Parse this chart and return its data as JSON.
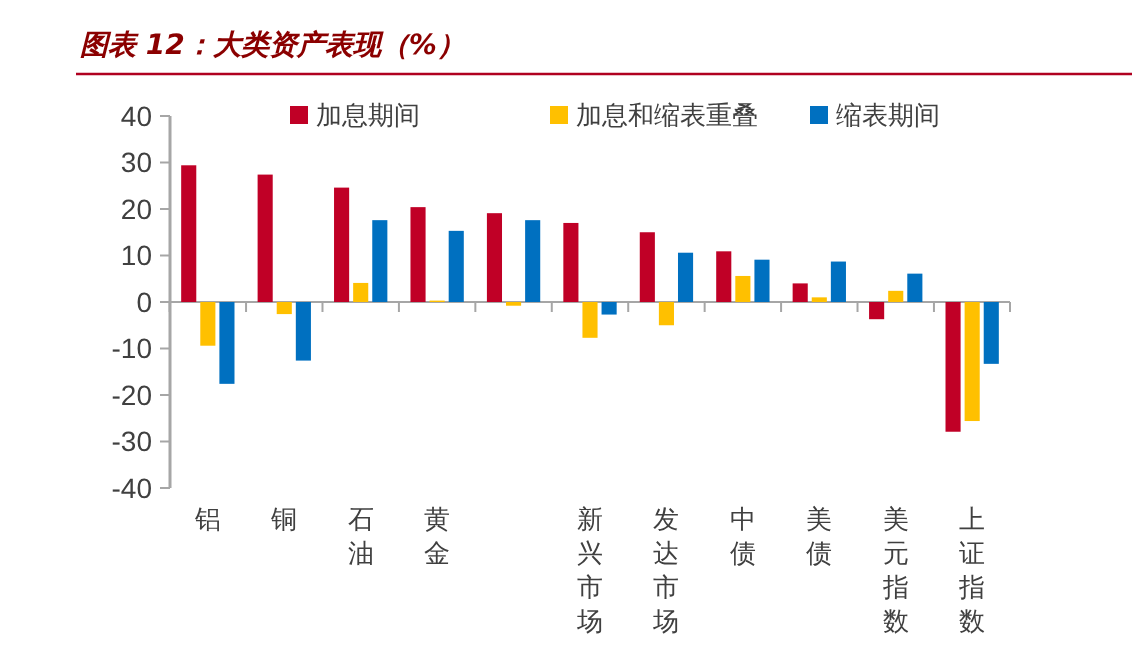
{
  "chart_data": {
    "type": "bar",
    "title": "图表 12：大类资产表现（%）",
    "categories": [
      "铝",
      "铜",
      "石油",
      "黄金",
      null,
      "新兴市场",
      "发达市场",
      "中债",
      "美债",
      "美元指数",
      "上证指数"
    ],
    "series": [
      {
        "name": "加息期间",
        "color": "#c00026",
        "values": [
          29.4,
          27.4,
          24.6,
          20.4,
          19.1,
          17,
          15,
          10.9,
          4,
          -3.7,
          -27.9
        ]
      },
      {
        "name": "加息和缩表重叠",
        "color": "#ffc000",
        "values": [
          -9.4,
          -2.6,
          4.1,
          0.3,
          -0.8,
          -7.7,
          -5,
          5.6,
          1,
          2.4,
          -25.6
        ]
      },
      {
        "name": "缩表期间",
        "color": "#0070c0",
        "values": [
          -17.6,
          -12.6,
          17.6,
          15.3,
          17.6,
          -2.7,
          10.6,
          9.1,
          8.7,
          6.1,
          -13.3
        ]
      }
    ],
    "ylim": [
      -40,
      40
    ],
    "yticks": [
      -40,
      -30,
      -20,
      -10,
      0,
      10,
      20,
      30,
      40
    ],
    "legend": "top"
  }
}
